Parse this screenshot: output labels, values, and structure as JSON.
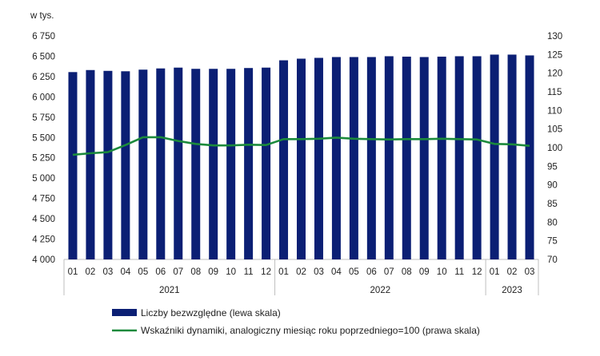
{
  "chart_data": {
    "type": "bar+line",
    "left_axis": {
      "unit_label": "w tys.",
      "ylim": [
        4000,
        6750
      ],
      "ticks": [
        "4 000",
        "4 250",
        "4 500",
        "4 750",
        "5 000",
        "5 250",
        "5 500",
        "5 750",
        "6 000",
        "6 250",
        "6 500",
        "6 750"
      ]
    },
    "right_axis": {
      "ylim": [
        70,
        130
      ],
      "ticks": [
        "70",
        "75",
        "80",
        "85",
        "90",
        "95",
        "100",
        "105",
        "110",
        "115",
        "120",
        "125",
        "130"
      ]
    },
    "categories": [
      "01",
      "02",
      "03",
      "04",
      "05",
      "06",
      "07",
      "08",
      "09",
      "10",
      "11",
      "12",
      "01",
      "02",
      "03",
      "04",
      "05",
      "06",
      "07",
      "08",
      "09",
      "10",
      "11",
      "12",
      "01",
      "02",
      "03"
    ],
    "year_groups": [
      {
        "label": "2021",
        "start": 0,
        "end": 11
      },
      {
        "label": "2022",
        "start": 12,
        "end": 23
      },
      {
        "label": "2023",
        "start": 24,
        "end": 26
      }
    ],
    "series": [
      {
        "name": "Liczby bezwzględne (lewa skala)",
        "type": "bar",
        "axis": "left",
        "color": "#0b1f74",
        "values": [
          6305,
          6330,
          6320,
          6315,
          6335,
          6350,
          6360,
          6345,
          6345,
          6345,
          6355,
          6360,
          6450,
          6470,
          6480,
          6490,
          6490,
          6490,
          6500,
          6495,
          6490,
          6495,
          6500,
          6500,
          6520,
          6520,
          6510
        ]
      },
      {
        "name": "Wskaźniki dynamiki, analogiczny miesiąc roku poprzedniego=100 (prawa skala)",
        "type": "line",
        "axis": "right",
        "color": "#1b8a3c",
        "values": [
          98.1,
          98.5,
          98.8,
          100.7,
          102.8,
          102.8,
          101.8,
          101.0,
          100.6,
          100.6,
          100.8,
          100.7,
          102.3,
          102.3,
          102.4,
          102.7,
          102.4,
          102.3,
          102.2,
          102.3,
          102.3,
          102.4,
          102.3,
          102.2,
          101.0,
          100.9,
          100.5
        ]
      }
    ],
    "legend_position": "bottom"
  }
}
